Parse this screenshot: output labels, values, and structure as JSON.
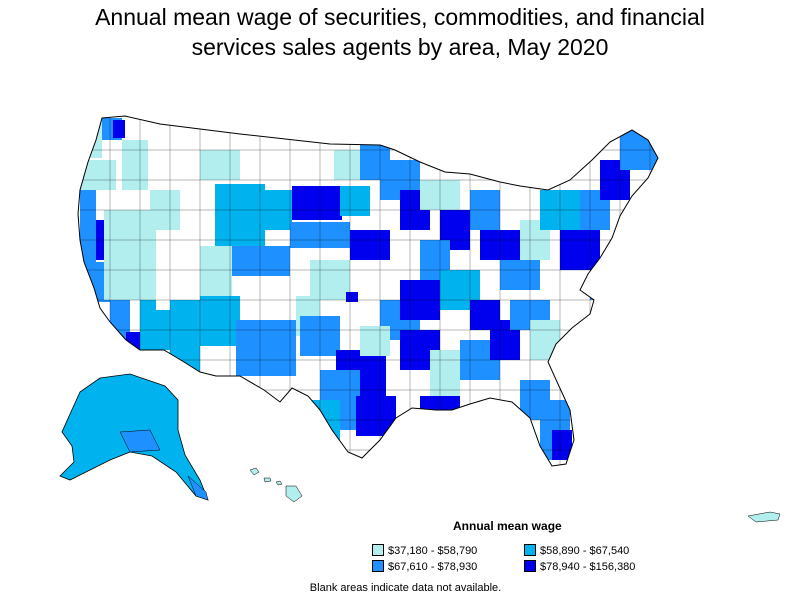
{
  "title": {
    "line1": "Annual mean wage of securities, commodities, and financial",
    "line2": "services sales agents by area, May 2020"
  },
  "legend": {
    "title": "Annual mean wage",
    "items": [
      {
        "label": "$37,180 - $58,790",
        "color": "#b2eeee"
      },
      {
        "label": "$58,890 - $67,540",
        "color": "#00b2ee"
      },
      {
        "label": "$67,610 - $78,930",
        "color": "#1e90ff"
      },
      {
        "label": "$78,940 - $156,380",
        "color": "#0000ee"
      }
    ]
  },
  "note": "Blank areas indicate data not available."
}
